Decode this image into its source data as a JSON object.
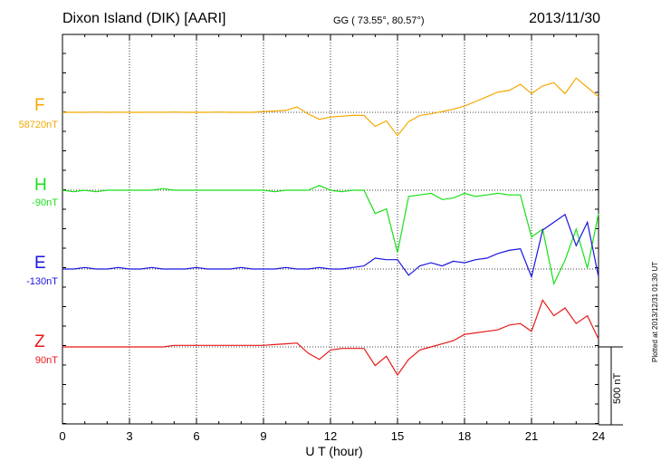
{
  "header": {
    "station": "Dixon Island (DIK)  [AARI]",
    "coords": "GG ( 73.55°,  80.57°)",
    "date": "2013/11/30"
  },
  "footer": {
    "plotted": "Plotted at 2013/12/31 01:30 UT",
    "scale_label": "500 nT"
  },
  "chart_data": {
    "type": "line",
    "title": "Dixon Island (DIK)  [AARI]",
    "xlabel": "U T (hour)",
    "ylabel": "",
    "xlim": [
      0,
      24
    ],
    "xticks": [
      "0",
      "3",
      "6",
      "9",
      "12",
      "15",
      "18",
      "21",
      "24"
    ],
    "grid": true,
    "scale_nT": 500,
    "x": [
      0,
      0.5,
      1,
      1.5,
      2,
      2.5,
      3,
      3.5,
      4,
      4.5,
      5,
      5.5,
      6,
      6.5,
      7,
      7.5,
      8,
      8.5,
      9,
      9.5,
      10,
      10.5,
      11,
      11.5,
      12,
      12.5,
      13,
      13.5,
      14,
      14.5,
      15,
      15.5,
      16,
      16.5,
      17,
      17.5,
      18,
      18.5,
      19,
      19.5,
      20,
      20.5,
      21,
      21.5,
      22,
      22.5,
      23,
      23.5,
      24
    ],
    "series": [
      {
        "name": "F",
        "baseline": "58720nT",
        "color": "#f5a800",
        "values": [
          0,
          0,
          0,
          2,
          0,
          1,
          0,
          0,
          1,
          0,
          2,
          0,
          0,
          0,
          2,
          0,
          0,
          0,
          5,
          8,
          12,
          35,
          -10,
          -45,
          -30,
          -25,
          -20,
          -20,
          -90,
          -55,
          -150,
          -60,
          -20,
          -10,
          5,
          20,
          40,
          70,
          100,
          130,
          140,
          180,
          120,
          170,
          190,
          120,
          220,
          160,
          100
        ]
      },
      {
        "name": "H",
        "baseline": "-90nT",
        "color": "#18e018",
        "values": [
          0,
          -10,
          0,
          -10,
          0,
          0,
          0,
          0,
          0,
          10,
          0,
          0,
          0,
          0,
          0,
          0,
          0,
          0,
          0,
          -10,
          0,
          0,
          0,
          30,
          0,
          -10,
          0,
          0,
          -150,
          -120,
          -400,
          -40,
          -30,
          -20,
          -60,
          -50,
          -20,
          -40,
          -30,
          -20,
          -30,
          -30,
          -300,
          -250,
          -600,
          -450,
          -250,
          -500,
          -150
        ]
      },
      {
        "name": "E",
        "baseline": "-130nT",
        "color": "#1a14e0",
        "values": [
          0,
          0,
          10,
          0,
          0,
          10,
          0,
          0,
          10,
          0,
          0,
          0,
          10,
          0,
          0,
          0,
          10,
          0,
          0,
          0,
          10,
          0,
          0,
          10,
          0,
          0,
          10,
          20,
          70,
          60,
          60,
          -40,
          20,
          40,
          20,
          50,
          40,
          60,
          70,
          100,
          120,
          130,
          -50,
          250,
          300,
          350,
          150,
          300,
          -50
        ]
      },
      {
        "name": "Z",
        "baseline": "90nT",
        "color": "#e81818",
        "values": [
          0,
          0,
          0,
          0,
          0,
          0,
          0,
          0,
          0,
          0,
          10,
          10,
          10,
          10,
          10,
          10,
          10,
          10,
          10,
          15,
          20,
          25,
          -40,
          -80,
          -20,
          -10,
          -10,
          -10,
          -120,
          -60,
          -180,
          -80,
          -20,
          0,
          20,
          40,
          80,
          90,
          100,
          110,
          140,
          150,
          100,
          300,
          200,
          250,
          150,
          200,
          50
        ]
      }
    ]
  }
}
